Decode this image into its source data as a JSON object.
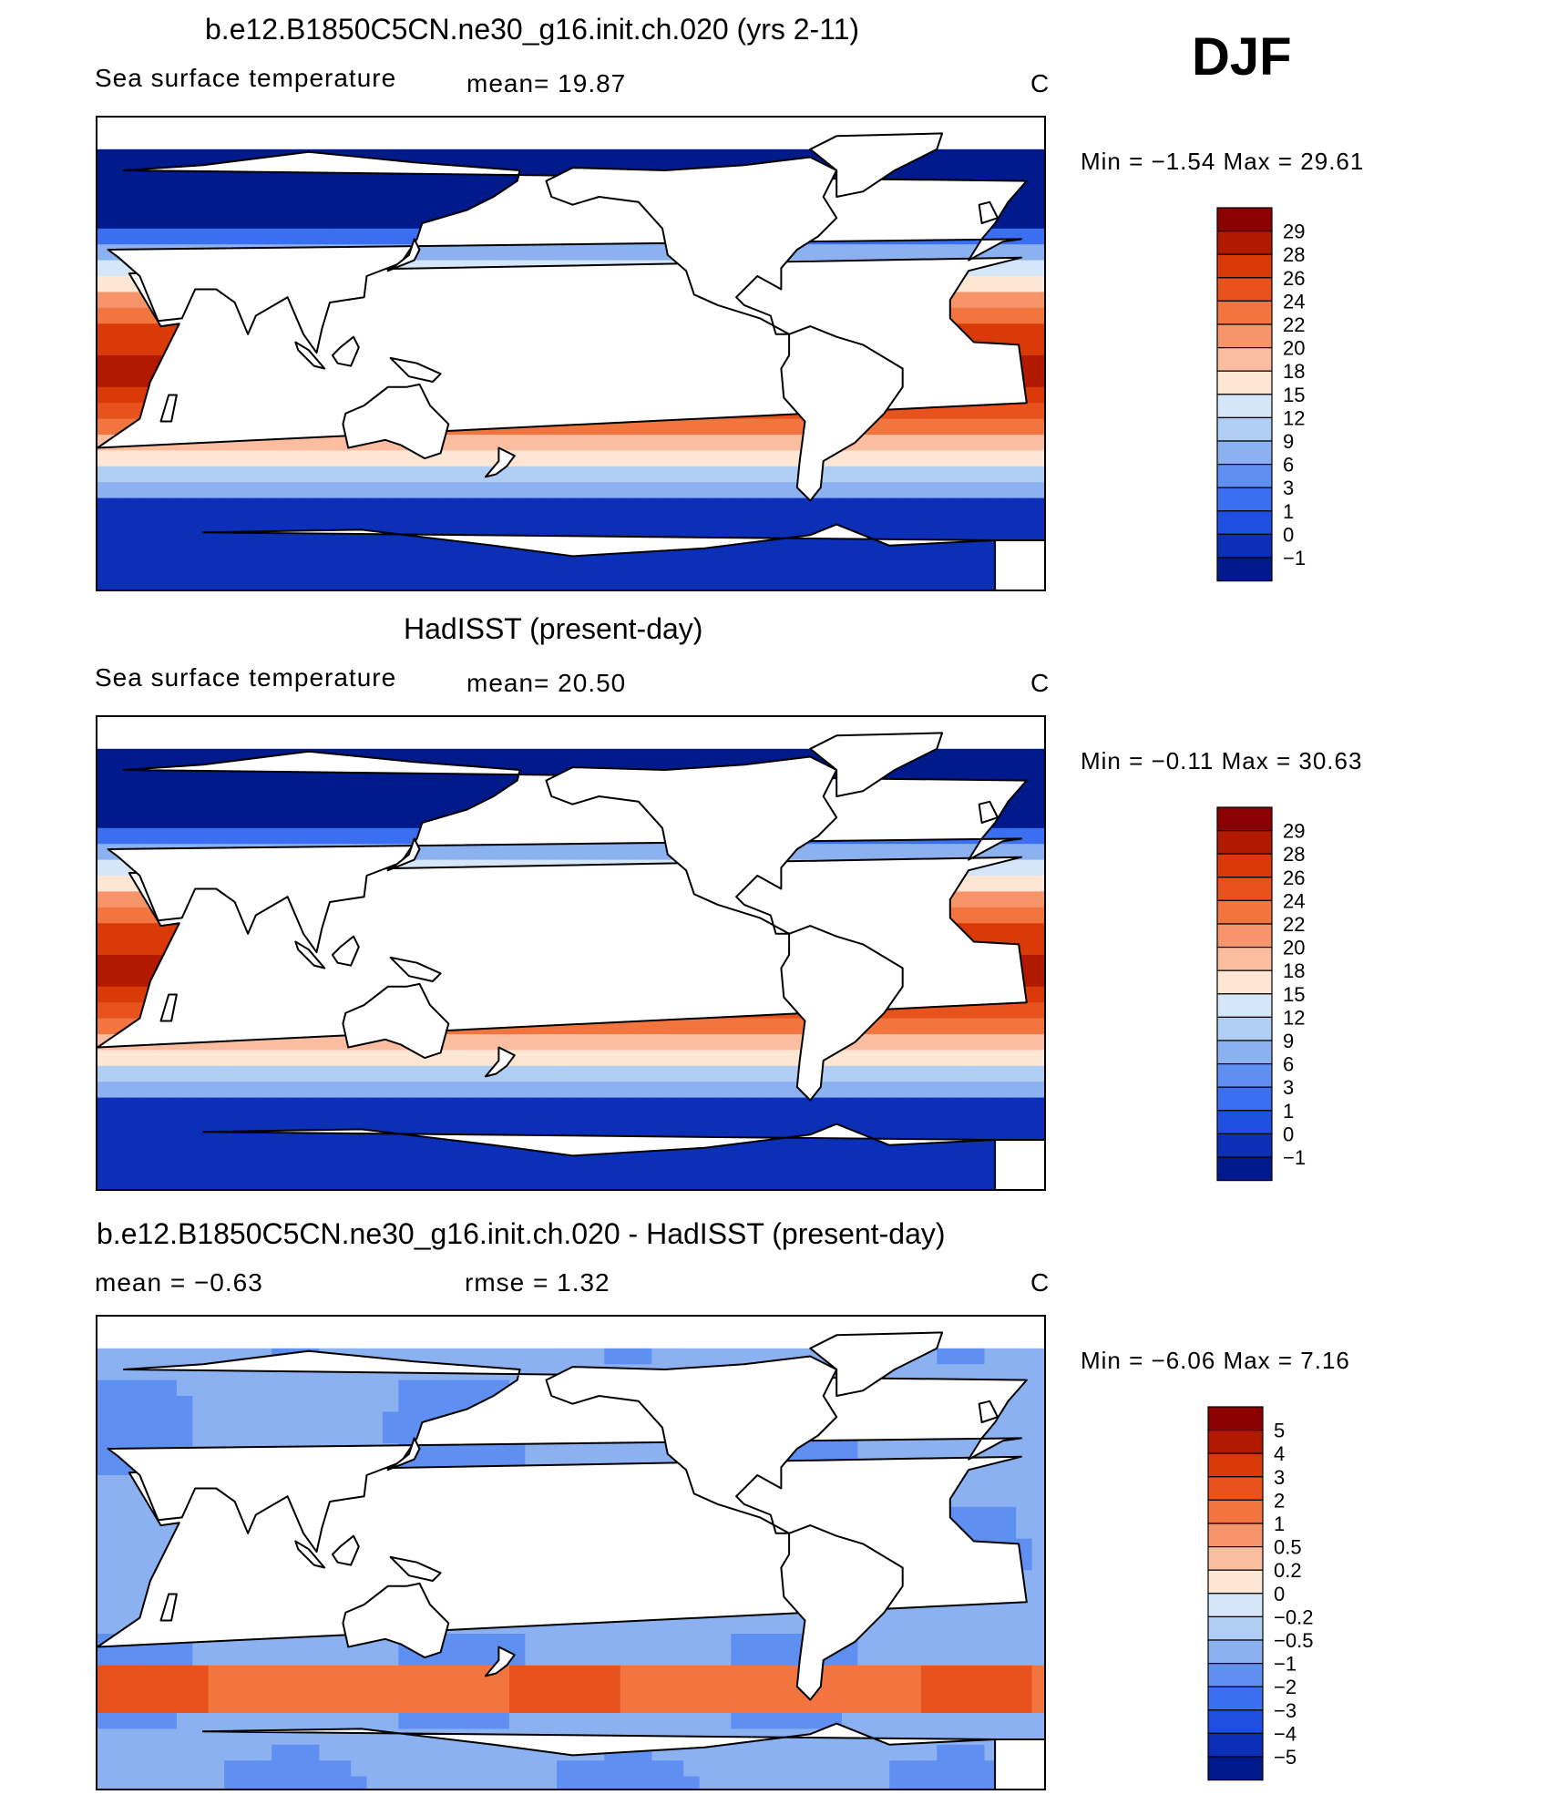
{
  "season": "DJF",
  "panels": [
    {
      "title": "b.e12.B1850C5CN.ne30_g16.init.ch.020 (yrs 2-11)",
      "variable": "Sea surface temperature",
      "stat1": "mean=   19.87",
      "stat2": "",
      "units": "C",
      "minmax": "Min =   −1.54  Max =   29.61",
      "kind": "sst"
    },
    {
      "title": "HadISST (present-day)",
      "variable": "Sea surface temperature",
      "stat1": "mean=   20.50",
      "stat2": "",
      "units": "C",
      "minmax": "Min =   −0.11  Max =   30.63",
      "kind": "sst"
    },
    {
      "title": "b.e12.B1850C5CN.ne30_g16.init.ch.020 - HadISST (present-day)",
      "variable": "",
      "stat1": "mean =   −0.63",
      "stat2": "rmse =    1.32",
      "units": "C",
      "minmax": "Min =   −6.06  Max =    7.16",
      "kind": "diff"
    }
  ],
  "chart_data": [
    {
      "type": "heatmap",
      "title": "b.e12.B1850C5CN.ne30_g16.init.ch.020 (yrs 2-11)",
      "variable": "Sea surface temperature",
      "units": "C",
      "mean": 19.87,
      "min": -1.54,
      "max": 29.61,
      "colorbar_levels": [
        "29",
        "28",
        "26",
        "24",
        "22",
        "20",
        "18",
        "15",
        "12",
        "9",
        "6",
        "3",
        "1",
        "0",
        "−1"
      ],
      "colorbar_colors": [
        "#8b0000",
        "#b21a00",
        "#d93a08",
        "#e8521c",
        "#f2753f",
        "#f7956a",
        "#fbbda0",
        "#fde6d4",
        "#d4e6f7",
        "#b0cdf4",
        "#8cb1f0",
        "#5f8ff0",
        "#3a6ff2",
        "#1e4fe0",
        "#0c2fb8",
        "#001a8c"
      ]
    },
    {
      "type": "heatmap",
      "title": "HadISST (present-day)",
      "variable": "Sea surface temperature",
      "units": "C",
      "mean": 20.5,
      "min": -0.11,
      "max": 30.63,
      "colorbar_levels": [
        "29",
        "28",
        "26",
        "24",
        "22",
        "20",
        "18",
        "15",
        "12",
        "9",
        "6",
        "3",
        "1",
        "0",
        "−1"
      ],
      "colorbar_colors": [
        "#8b0000",
        "#b21a00",
        "#d93a08",
        "#e8521c",
        "#f2753f",
        "#f7956a",
        "#fbbda0",
        "#fde6d4",
        "#d4e6f7",
        "#b0cdf4",
        "#8cb1f0",
        "#5f8ff0",
        "#3a6ff2",
        "#1e4fe0",
        "#0c2fb8",
        "#001a8c"
      ]
    },
    {
      "type": "heatmap",
      "title": "b.e12.B1850C5CN.ne30_g16.init.ch.020 - HadISST (present-day)",
      "units": "C",
      "mean": -0.63,
      "rmse": 1.32,
      "min": -6.06,
      "max": 7.16,
      "colorbar_levels": [
        "5",
        "4",
        "3",
        "2",
        "1",
        "0.5",
        "0.2",
        "0",
        "−0.2",
        "−0.5",
        "−1",
        "−2",
        "−3",
        "−4",
        "−5"
      ],
      "colorbar_colors": [
        "#8b0000",
        "#b21a00",
        "#d93a08",
        "#e8521c",
        "#f2753f",
        "#f7956a",
        "#fbbda0",
        "#fde6d4",
        "#d4e6f7",
        "#b0cdf4",
        "#8cb1f0",
        "#5f8ff0",
        "#3a6ff2",
        "#1e4fe0",
        "#0c2fb8",
        "#001a8c"
      ]
    }
  ]
}
